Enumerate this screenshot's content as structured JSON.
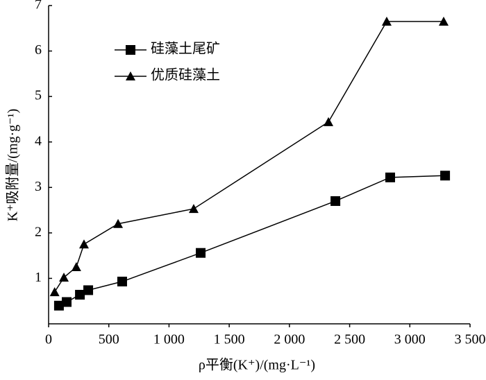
{
  "chart_data": {
    "type": "line",
    "x_label": "ρ平衡(K⁺)/(mg·L⁻¹)",
    "y_label": "K⁺吸附量/(mg·g⁻¹)",
    "series": [
      {
        "name": "硅藻土尾矿",
        "marker": "square",
        "color": "#000000",
        "x": [
          86,
          150,
          260,
          329,
          611,
          1263,
          2382,
          2837,
          3293
        ],
        "values": [
          0.4,
          0.48,
          0.64,
          0.74,
          0.93,
          1.56,
          2.7,
          3.22,
          3.26
        ]
      },
      {
        "name": "优质硅藻土",
        "marker": "triangle",
        "color": "#000000",
        "x": [
          50,
          127,
          230,
          294,
          577,
          1205,
          2324,
          2808,
          3281
        ],
        "values": [
          0.7,
          1.02,
          1.25,
          1.75,
          2.2,
          2.53,
          4.44,
          6.65,
          6.65
        ]
      }
    ],
    "xlim": [
      0,
      3500
    ],
    "xticks": [
      0,
      500,
      {
        "value": 1000,
        "label": "1 000"
      },
      {
        "value": 1500,
        "label": "1 500"
      },
      {
        "value": 2000,
        "label": "2 000"
      },
      {
        "value": 2500,
        "label": "2 500"
      },
      {
        "value": 3000,
        "label": "3 000"
      },
      {
        "value": 3500,
        "label": "3 500"
      }
    ],
    "ylim": [
      0,
      7
    ],
    "yticks": [
      1,
      2,
      3,
      4,
      5,
      6,
      7
    ],
    "legend": "upper left"
  }
}
